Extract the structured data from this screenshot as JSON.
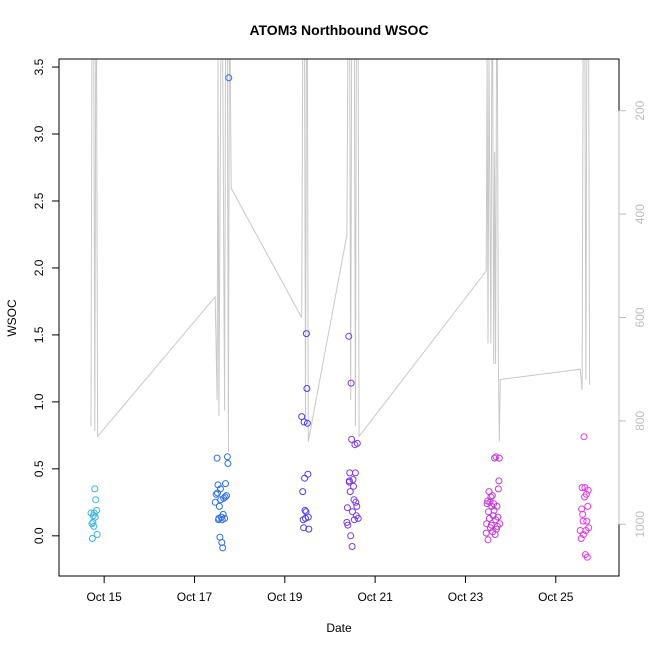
{
  "chart_data": {
    "type": "scatter",
    "title": "ATOM3 Northbound WSOC",
    "xlabel": "Date",
    "ylabel": "WSOC",
    "xlim": [
      "2016-10-14",
      "2016-10-26.4"
    ],
    "ylim": [
      -0.3,
      3.56
    ],
    "x_ticks": [
      {
        "date": "2016-10-15",
        "label": "Oct 15"
      },
      {
        "date": "2016-10-17",
        "label": "Oct 17"
      },
      {
        "date": "2016-10-19",
        "label": "Oct 19"
      },
      {
        "date": "2016-10-21",
        "label": "Oct 21"
      },
      {
        "date": "2016-10-23",
        "label": "Oct 23"
      },
      {
        "date": "2016-10-25",
        "label": "Oct 25"
      }
    ],
    "y_ticks": [
      0.0,
      0.5,
      1.0,
      1.5,
      2.0,
      2.5,
      3.0,
      3.5
    ],
    "y_tick_labels": [
      "0.0",
      "0.5",
      "1.0",
      "1.5",
      "2.0",
      "2.5",
      "3.0",
      "3.5"
    ],
    "right_axis": {
      "reversed": true,
      "ylim": [
        1100,
        100
      ],
      "ticks": [
        200,
        400,
        600,
        800,
        1000
      ],
      "tick_labels": [
        "200",
        "400",
        "600",
        "800",
        "1000"
      ],
      "color": "#bdbdbd"
    },
    "grid": false,
    "legend": "none",
    "background_line": {
      "color": "#c8c8c8",
      "axis": "right",
      "points": [
        [
          "2016-10-14 17:00",
          810
        ],
        [
          "2016-10-14 17:30",
          100
        ],
        [
          "2016-10-14 18:30",
          100
        ],
        [
          "2016-10-14 19:00",
          820
        ],
        [
          "2016-10-14 19:30",
          100
        ],
        [
          "2016-10-14 20:00",
          100
        ],
        [
          "2016-10-14 20:30",
          830
        ],
        [
          "2016-10-17 11:00",
          560
        ],
        [
          "2016-10-17 12:00",
          760
        ],
        [
          "2016-10-17 12:30",
          100
        ],
        [
          "2016-10-17 13:00",
          790
        ],
        [
          "2016-10-17 14:00",
          100
        ],
        [
          "2016-10-17 15:00",
          100
        ],
        [
          "2016-10-17 16:00",
          780
        ],
        [
          "2016-10-17 16:30",
          100
        ],
        [
          "2016-10-17 17:30",
          100
        ],
        [
          "2016-10-17 18:00",
          860
        ],
        [
          "2016-10-17 18:30",
          100
        ],
        [
          "2016-10-17 19:00",
          100
        ],
        [
          "2016-10-17 19:30",
          350
        ],
        [
          "2016-10-19 09:00",
          600
        ],
        [
          "2016-10-19 09:30",
          100
        ],
        [
          "2016-10-19 10:30",
          100
        ],
        [
          "2016-10-19 11:00",
          800
        ],
        [
          "2016-10-19 11:30",
          100
        ],
        [
          "2016-10-19 12:00",
          100
        ],
        [
          "2016-10-19 12:30",
          840
        ],
        [
          "2016-10-20 09:00",
          440
        ],
        [
          "2016-10-20 09:30",
          100
        ],
        [
          "2016-10-20 10:30",
          100
        ],
        [
          "2016-10-20 11:00",
          760
        ],
        [
          "2016-10-20 11:30",
          100
        ],
        [
          "2016-10-20 13:00",
          100
        ],
        [
          "2016-10-20 13:30",
          810
        ],
        [
          "2016-10-20 14:00",
          100
        ],
        [
          "2016-10-20 15:00",
          100
        ],
        [
          "2016-10-20 15:30",
          830
        ],
        [
          "2016-10-23 11:00",
          510
        ],
        [
          "2016-10-23 11:30",
          100
        ],
        [
          "2016-10-23 12:00",
          650
        ],
        [
          "2016-10-23 12:30",
          100
        ],
        [
          "2016-10-23 13:30",
          650
        ],
        [
          "2016-10-23 14:00",
          100
        ],
        [
          "2016-10-23 14:30",
          100
        ],
        [
          "2016-10-23 15:00",
          690
        ],
        [
          "2016-10-23 15:30",
          280
        ],
        [
          "2016-10-23 16:00",
          690
        ],
        [
          "2016-10-23 16:30",
          100
        ],
        [
          "2016-10-23 17:00",
          100
        ],
        [
          "2016-10-23 17:30",
          690
        ],
        [
          "2016-10-23 18:00",
          840
        ],
        [
          "2016-10-23 18:30",
          720
        ],
        [
          "2016-10-25 13:00",
          700
        ],
        [
          "2016-10-25 14:00",
          740
        ],
        [
          "2016-10-25 14:30",
          100
        ],
        [
          "2016-10-25 15:30",
          100
        ],
        [
          "2016-10-25 16:00",
          720
        ],
        [
          "2016-10-25 16:30",
          100
        ],
        [
          "2016-10-25 17:30",
          100
        ],
        [
          "2016-10-25 18:00",
          730
        ]
      ]
    },
    "series": [
      {
        "color": "#3bb5e0",
        "points": [
          [
            "2016-10-14 17:00",
            0.17
          ],
          [
            "2016-10-14 17:30",
            0.09
          ],
          [
            "2016-10-14 17:45",
            -0.02
          ],
          [
            "2016-10-14 18:00",
            0.1
          ],
          [
            "2016-10-14 18:15",
            0.15
          ],
          [
            "2016-10-14 18:30",
            0.07
          ],
          [
            "2016-10-14 19:00",
            0.35
          ],
          [
            "2016-10-14 19:15",
            0.14
          ],
          [
            "2016-10-14 19:30",
            0.27
          ],
          [
            "2016-10-14 20:00",
            0.19
          ],
          [
            "2016-10-14 20:15",
            0.01
          ],
          [
            "2016-10-14 18:45",
            0.17
          ]
        ]
      },
      {
        "color": "#2e6fe6",
        "points": [
          [
            "2016-10-17 11:00",
            0.25
          ],
          [
            "2016-10-17 11:30",
            0.31
          ],
          [
            "2016-10-17 12:00",
            0.58
          ],
          [
            "2016-10-17 12:15",
            0.32
          ],
          [
            "2016-10-17 12:30",
            0.38
          ],
          [
            "2016-10-17 12:45",
            0.12
          ],
          [
            "2016-10-17 13:00",
            0.13
          ],
          [
            "2016-10-17 13:30",
            -0.01
          ],
          [
            "2016-10-17 13:45",
            0.35
          ],
          [
            "2016-10-17 14:00",
            0.27
          ],
          [
            "2016-10-17 14:15",
            0.14
          ],
          [
            "2016-10-17 14:30",
            -0.05
          ],
          [
            "2016-10-17 15:00",
            -0.09
          ],
          [
            "2016-10-17 15:15",
            0.16
          ],
          [
            "2016-10-17 15:30",
            0.28
          ],
          [
            "2016-10-17 16:00",
            0.13
          ],
          [
            "2016-10-17 16:15",
            0.29
          ],
          [
            "2016-10-17 16:30",
            0.39
          ],
          [
            "2016-10-17 17:00",
            0.3
          ],
          [
            "2016-10-17 17:30",
            0.59
          ],
          [
            "2016-10-17 17:45",
            0.54
          ],
          [
            "2016-10-17 18:15",
            3.42
          ],
          [
            "2016-10-17 13:15",
            0.22
          ],
          [
            "2016-10-17 14:45",
            0.12
          ]
        ]
      },
      {
        "color": "#4a3ff0",
        "points": [
          [
            "2016-10-19 09:00",
            0.89
          ],
          [
            "2016-10-19 09:30",
            0.33
          ],
          [
            "2016-10-19 09:45",
            0.12
          ],
          [
            "2016-10-19 10:00",
            0.06
          ],
          [
            "2016-10-19 10:15",
            0.85
          ],
          [
            "2016-10-19 10:30",
            0.43
          ],
          [
            "2016-10-19 10:45",
            0.19
          ],
          [
            "2016-10-19 11:00",
            0.13
          ],
          [
            "2016-10-19 11:15",
            0.18
          ],
          [
            "2016-10-19 11:30",
            1.51
          ],
          [
            "2016-10-19 11:45",
            1.1
          ],
          [
            "2016-10-19 12:00",
            0.84
          ],
          [
            "2016-10-19 12:15",
            0.46
          ],
          [
            "2016-10-19 12:30",
            0.14
          ],
          [
            "2016-10-19 12:45",
            0.05
          ]
        ]
      },
      {
        "color": "#7a3ae6",
        "points": [
          [
            "2016-10-20 09:00",
            0.1
          ],
          [
            "2016-10-20 09:15",
            0.21
          ],
          [
            "2016-10-20 09:30",
            0.08
          ],
          [
            "2016-10-20 10:00",
            1.49
          ],
          [
            "2016-10-20 10:15",
            0.4
          ],
          [
            "2016-10-20 10:30",
            0.47
          ],
          [
            "2016-10-20 10:45",
            0.33
          ],
          [
            "2016-10-20 11:00",
            0.0
          ],
          [
            "2016-10-20 11:15",
            1.14
          ],
          [
            "2016-10-20 11:30",
            0.72
          ],
          [
            "2016-10-20 11:45",
            -0.08
          ],
          [
            "2016-10-20 12:00",
            0.18
          ],
          [
            "2016-10-20 12:15",
            0.42
          ],
          [
            "2016-10-20 12:30",
            0.37
          ],
          [
            "2016-10-20 12:45",
            0.27
          ],
          [
            "2016-10-20 13:00",
            0.12
          ],
          [
            "2016-10-20 13:15",
            0.68
          ],
          [
            "2016-10-20 13:30",
            0.47
          ],
          [
            "2016-10-20 13:45",
            0.25
          ],
          [
            "2016-10-20 14:00",
            0.15
          ],
          [
            "2016-10-20 14:15",
            0.22
          ],
          [
            "2016-10-20 14:30",
            0.69
          ],
          [
            "2016-10-20 15:00",
            0.13
          ],
          [
            "2016-10-20 10:20",
            0.41
          ]
        ]
      },
      {
        "color": "#c43ad8",
        "points": [
          [
            "2016-10-23 11:00",
            0.02
          ],
          [
            "2016-10-23 11:15",
            0.09
          ],
          [
            "2016-10-23 11:30",
            0.24
          ],
          [
            "2016-10-23 11:45",
            0.26
          ],
          [
            "2016-10-23 12:00",
            -0.03
          ],
          [
            "2016-10-23 12:15",
            0.18
          ],
          [
            "2016-10-23 12:30",
            0.33
          ],
          [
            "2016-10-23 12:45",
            0.13
          ],
          [
            "2016-10-23 13:00",
            0.25
          ],
          [
            "2016-10-23 13:15",
            0.06
          ],
          [
            "2016-10-23 13:30",
            0.29
          ],
          [
            "2016-10-23 13:45",
            0.08
          ],
          [
            "2016-10-23 14:00",
            0.22
          ],
          [
            "2016-10-23 14:15",
            0.3
          ],
          [
            "2016-10-23 14:30",
            0.03
          ],
          [
            "2016-10-23 14:45",
            0.15
          ],
          [
            "2016-10-23 15:00",
            0.24
          ],
          [
            "2016-10-23 15:15",
            0.19
          ],
          [
            "2016-10-23 15:30",
            0.58
          ],
          [
            "2016-10-23 15:45",
            0.01
          ],
          [
            "2016-10-23 16:00",
            0.12
          ],
          [
            "2016-10-23 16:15",
            0.59
          ],
          [
            "2016-10-23 16:30",
            0.05
          ],
          [
            "2016-10-23 16:45",
            0.22
          ],
          [
            "2016-10-23 17:00",
            0.07
          ],
          [
            "2016-10-23 17:15",
            0.14
          ],
          [
            "2016-10-23 17:30",
            0.35
          ],
          [
            "2016-10-23 17:45",
            0.41
          ],
          [
            "2016-10-23 18:00",
            0.58
          ],
          [
            "2016-10-23 18:15",
            0.09
          ]
        ]
      },
      {
        "color": "#e43ae0",
        "points": [
          [
            "2016-10-25 13:00",
            0.04
          ],
          [
            "2016-10-25 13:30",
            -0.02
          ],
          [
            "2016-10-25 13:45",
            0.2
          ],
          [
            "2016-10-25 14:00",
            0.36
          ],
          [
            "2016-10-25 14:15",
            0.16
          ],
          [
            "2016-10-25 14:30",
            0.11
          ],
          [
            "2016-10-25 14:45",
            0.01
          ],
          [
            "2016-10-25 15:00",
            0.74
          ],
          [
            "2016-10-25 15:15",
            0.29
          ],
          [
            "2016-10-25 15:30",
            0.36
          ],
          [
            "2016-10-25 15:45",
            -0.14
          ],
          [
            "2016-10-25 16:00",
            0.04
          ],
          [
            "2016-10-25 16:15",
            0.31
          ],
          [
            "2016-10-25 16:30",
            0.11
          ],
          [
            "2016-10-25 16:45",
            -0.16
          ],
          [
            "2016-10-25 17:00",
            0.22
          ],
          [
            "2016-10-25 17:15",
            0.34
          ],
          [
            "2016-10-25 17:30",
            0.06
          ]
        ]
      }
    ]
  }
}
